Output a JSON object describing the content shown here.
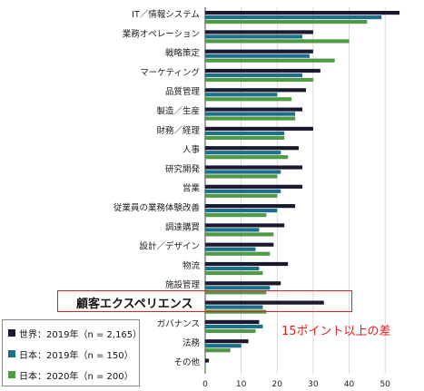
{
  "chart_data": {
    "type": "bar",
    "orientation": "horizontal",
    "categories": [
      "IT／情報システム",
      "業務オペレーション",
      "戦略策定",
      "マーケティング",
      "品質管理",
      "製造／生産",
      "財務／経理",
      "人事",
      "研究開発",
      "営業",
      "従業員の業務体験改善",
      "調達購買",
      "設計／デザイン",
      "物流",
      "施設管理",
      "顧客エクスペリエンス",
      "ガバナンス",
      "法務",
      "その他"
    ],
    "series": [
      {
        "name": "世界：2019年（n = 2,165）",
        "color": "#1a1a2e",
        "values": [
          54,
          30,
          30,
          32,
          28,
          27,
          30,
          26,
          27,
          27,
          25,
          22,
          19,
          23,
          21,
          33,
          15,
          12,
          1
        ]
      },
      {
        "name": "日本：2019年（n = 150）",
        "color": "#1f6f8b",
        "values": [
          49,
          27,
          29,
          27,
          20,
          25,
          22,
          21,
          21,
          21,
          20,
          15,
          14,
          15,
          18,
          16,
          16,
          10,
          0
        ]
      },
      {
        "name": "日本：2020年（n = 200）",
        "color": "#4f9a45",
        "values": [
          45,
          40,
          36,
          30,
          24,
          25,
          22,
          23,
          20,
          20,
          17,
          19,
          18,
          16,
          17,
          17,
          14,
          7,
          0
        ]
      }
    ],
    "xlim": [
      0,
      55
    ],
    "xticks": [
      0,
      10,
      20,
      30,
      40,
      50
    ],
    "grid": true,
    "legend_placement": "bottom-left",
    "highlight": {
      "category": "顧客エクスペリエンス",
      "annotation": "15ポイント以上の差"
    }
  }
}
